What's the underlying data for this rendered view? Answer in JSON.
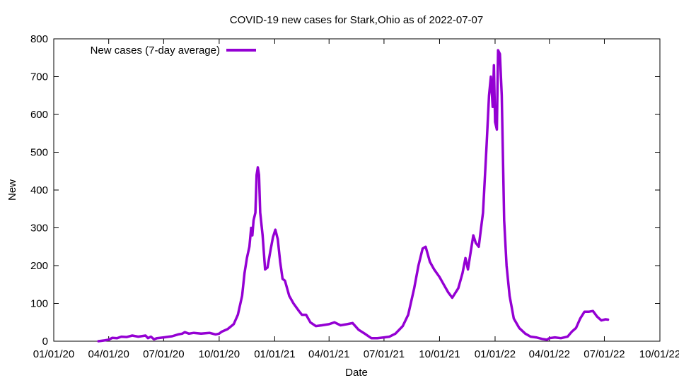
{
  "chart_data": {
    "type": "line",
    "title": "COVID-19 new cases for Stark,Ohio as of 2022-07-07",
    "xlabel": "Date",
    "ylabel": "New",
    "xlim": [
      "2020-01-01",
      "2022-10-01"
    ],
    "ylim": [
      0,
      800
    ],
    "x_ticks": [
      {
        "date": "2020-01-01",
        "label": "01/01/20"
      },
      {
        "date": "2020-04-01",
        "label": "04/01/20"
      },
      {
        "date": "2020-07-01",
        "label": "07/01/20"
      },
      {
        "date": "2020-10-01",
        "label": "10/01/20"
      },
      {
        "date": "2021-01-01",
        "label": "01/01/21"
      },
      {
        "date": "2021-04-01",
        "label": "04/01/21"
      },
      {
        "date": "2021-07-01",
        "label": "07/01/21"
      },
      {
        "date": "2021-10-01",
        "label": "10/01/21"
      },
      {
        "date": "2022-01-01",
        "label": "01/01/22"
      },
      {
        "date": "2022-04-01",
        "label": "04/01/22"
      },
      {
        "date": "2022-07-01",
        "label": "07/01/22"
      },
      {
        "date": "2022-10-01",
        "label": "10/01/22"
      }
    ],
    "y_ticks": [
      0,
      100,
      200,
      300,
      400,
      500,
      600,
      700,
      800
    ],
    "legend_position": "top-left",
    "grid": false,
    "series": [
      {
        "name": "New cases (7-day average)",
        "color": "#9400d3",
        "points": [
          [
            "2020-03-15",
            0
          ],
          [
            "2020-03-25",
            2
          ],
          [
            "2020-04-01",
            4
          ],
          [
            "2020-04-07",
            9
          ],
          [
            "2020-04-15",
            8
          ],
          [
            "2020-04-22",
            12
          ],
          [
            "2020-05-01",
            11
          ],
          [
            "2020-05-10",
            15
          ],
          [
            "2020-05-20",
            12
          ],
          [
            "2020-06-01",
            15
          ],
          [
            "2020-06-05",
            8
          ],
          [
            "2020-06-10",
            12
          ],
          [
            "2020-06-15",
            5
          ],
          [
            "2020-06-20",
            8
          ],
          [
            "2020-07-01",
            10
          ],
          [
            "2020-07-15",
            13
          ],
          [
            "2020-07-25",
            18
          ],
          [
            "2020-08-01",
            20
          ],
          [
            "2020-08-05",
            24
          ],
          [
            "2020-08-12",
            20
          ],
          [
            "2020-08-20",
            22
          ],
          [
            "2020-09-01",
            20
          ],
          [
            "2020-09-15",
            22
          ],
          [
            "2020-09-25",
            18
          ],
          [
            "2020-10-01",
            20
          ],
          [
            "2020-10-05",
            25
          ],
          [
            "2020-10-15",
            32
          ],
          [
            "2020-10-25",
            45
          ],
          [
            "2020-11-01",
            70
          ],
          [
            "2020-11-08",
            120
          ],
          [
            "2020-11-12",
            180
          ],
          [
            "2020-11-16",
            220
          ],
          [
            "2020-11-20",
            250
          ],
          [
            "2020-11-23",
            300
          ],
          [
            "2020-11-25",
            280
          ],
          [
            "2020-11-27",
            320
          ],
          [
            "2020-11-30",
            340
          ],
          [
            "2020-12-02",
            440
          ],
          [
            "2020-12-04",
            460
          ],
          [
            "2020-12-06",
            440
          ],
          [
            "2020-12-08",
            340
          ],
          [
            "2020-12-12",
            280
          ],
          [
            "2020-12-16",
            190
          ],
          [
            "2020-12-20",
            195
          ],
          [
            "2020-12-25",
            240
          ],
          [
            "2020-12-29",
            275
          ],
          [
            "2021-01-02",
            295
          ],
          [
            "2021-01-06",
            270
          ],
          [
            "2021-01-10",
            210
          ],
          [
            "2021-01-14",
            165
          ],
          [
            "2021-01-18",
            160
          ],
          [
            "2021-01-25",
            120
          ],
          [
            "2021-02-01",
            100
          ],
          [
            "2021-02-10",
            80
          ],
          [
            "2021-02-15",
            70
          ],
          [
            "2021-02-22",
            70
          ],
          [
            "2021-03-01",
            50
          ],
          [
            "2021-03-10",
            40
          ],
          [
            "2021-03-20",
            42
          ],
          [
            "2021-04-01",
            45
          ],
          [
            "2021-04-10",
            50
          ],
          [
            "2021-04-20",
            42
          ],
          [
            "2021-05-01",
            45
          ],
          [
            "2021-05-10",
            48
          ],
          [
            "2021-05-20",
            30
          ],
          [
            "2021-06-01",
            18
          ],
          [
            "2021-06-10",
            8
          ],
          [
            "2021-06-20",
            8
          ],
          [
            "2021-07-01",
            10
          ],
          [
            "2021-07-10",
            12
          ],
          [
            "2021-07-20",
            20
          ],
          [
            "2021-08-01",
            40
          ],
          [
            "2021-08-10",
            70
          ],
          [
            "2021-08-20",
            140
          ],
          [
            "2021-08-27",
            200
          ],
          [
            "2021-09-03",
            245
          ],
          [
            "2021-09-08",
            250
          ],
          [
            "2021-09-15",
            210
          ],
          [
            "2021-09-22",
            190
          ],
          [
            "2021-10-01",
            170
          ],
          [
            "2021-10-08",
            150
          ],
          [
            "2021-10-15",
            130
          ],
          [
            "2021-10-22",
            115
          ],
          [
            "2021-11-01",
            140
          ],
          [
            "2021-11-08",
            180
          ],
          [
            "2021-11-13",
            220
          ],
          [
            "2021-11-17",
            190
          ],
          [
            "2021-11-22",
            240
          ],
          [
            "2021-11-26",
            280
          ],
          [
            "2021-11-30",
            260
          ],
          [
            "2021-12-05",
            250
          ],
          [
            "2021-12-08",
            290
          ],
          [
            "2021-12-12",
            340
          ],
          [
            "2021-12-18",
            520
          ],
          [
            "2021-12-22",
            650
          ],
          [
            "2021-12-25",
            700
          ],
          [
            "2021-12-28",
            620
          ],
          [
            "2021-12-30",
            730
          ],
          [
            "2022-01-01",
            580
          ],
          [
            "2022-01-04",
            560
          ],
          [
            "2022-01-06",
            770
          ],
          [
            "2022-01-09",
            760
          ],
          [
            "2022-01-12",
            650
          ],
          [
            "2022-01-16",
            320
          ],
          [
            "2022-01-20",
            200
          ],
          [
            "2022-01-25",
            120
          ],
          [
            "2022-02-01",
            60
          ],
          [
            "2022-02-10",
            35
          ],
          [
            "2022-02-20",
            20
          ],
          [
            "2022-03-01",
            12
          ],
          [
            "2022-03-10",
            10
          ],
          [
            "2022-03-20",
            6
          ],
          [
            "2022-03-28",
            4
          ],
          [
            "2022-04-01",
            8
          ],
          [
            "2022-04-10",
            10
          ],
          [
            "2022-04-20",
            8
          ],
          [
            "2022-05-01",
            12
          ],
          [
            "2022-05-08",
            25
          ],
          [
            "2022-05-15",
            35
          ],
          [
            "2022-05-22",
            60
          ],
          [
            "2022-05-29",
            78
          ],
          [
            "2022-06-05",
            78
          ],
          [
            "2022-06-12",
            80
          ],
          [
            "2022-06-19",
            65
          ],
          [
            "2022-06-26",
            55
          ],
          [
            "2022-07-03",
            58
          ],
          [
            "2022-07-07",
            57
          ]
        ]
      }
    ]
  }
}
